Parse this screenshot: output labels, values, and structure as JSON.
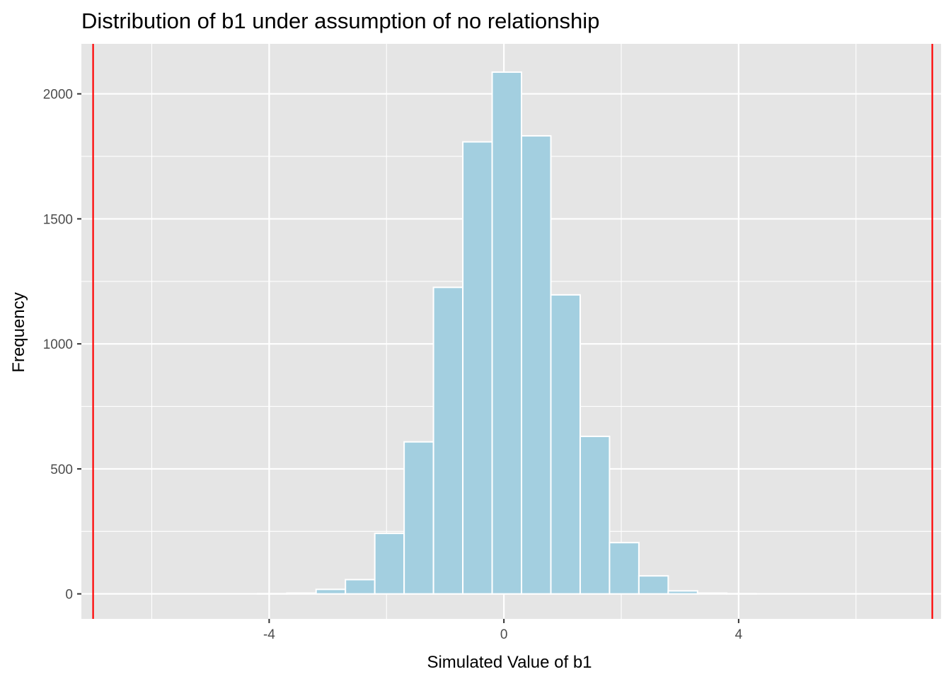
{
  "chart_data": {
    "type": "bar",
    "subtype": "histogram",
    "title": "Distribution of b1 under assumption of no relationship",
    "xlabel": "Simulated Value of b1",
    "ylabel": "Frequency",
    "xlim": [
      -7.2,
      7.45
    ],
    "ylim": [
      -100,
      2200
    ],
    "x_ticks": [
      -4,
      0,
      4
    ],
    "x_tick_labels": [
      "-4",
      "0",
      "4"
    ],
    "y_ticks": [
      0,
      500,
      1000,
      1500,
      2000
    ],
    "y_tick_labels": [
      "0",
      "500",
      "1000",
      "1500",
      "2000"
    ],
    "grid": true,
    "background": "#e5e5e5",
    "bar_fill": "#a3cfe0",
    "bar_outline": "#ffffff",
    "reference_line_color": "#ff0000",
    "reference_lines": [
      -7.0,
      7.3
    ],
    "bins": [
      {
        "x0": -5.7,
        "x1": -5.2,
        "count": 0
      },
      {
        "x0": -5.2,
        "x1": -4.7,
        "count": 0
      },
      {
        "x0": -4.7,
        "x1": -4.2,
        "count": 0
      },
      {
        "x0": -4.2,
        "x1": -3.7,
        "count": 1
      },
      {
        "x0": -3.7,
        "x1": -3.2,
        "count": 3
      },
      {
        "x0": -3.2,
        "x1": -2.7,
        "count": 18
      },
      {
        "x0": -2.7,
        "x1": -2.2,
        "count": 57
      },
      {
        "x0": -2.2,
        "x1": -1.7,
        "count": 242
      },
      {
        "x0": -1.7,
        "x1": -1.2,
        "count": 608
      },
      {
        "x0": -1.2,
        "x1": -0.7,
        "count": 1226
      },
      {
        "x0": -0.7,
        "x1": -0.2,
        "count": 1808
      },
      {
        "x0": -0.2,
        "x1": 0.3,
        "count": 2087
      },
      {
        "x0": 0.3,
        "x1": 0.8,
        "count": 1832
      },
      {
        "x0": 0.8,
        "x1": 1.3,
        "count": 1196
      },
      {
        "x0": 1.3,
        "x1": 1.8,
        "count": 630
      },
      {
        "x0": 1.8,
        "x1": 2.3,
        "count": 205
      },
      {
        "x0": 2.3,
        "x1": 2.8,
        "count": 72
      },
      {
        "x0": 2.8,
        "x1": 3.3,
        "count": 12
      },
      {
        "x0": 3.3,
        "x1": 3.8,
        "count": 3
      },
      {
        "x0": 3.8,
        "x1": 4.3,
        "count": 1
      },
      {
        "x0": 4.3,
        "x1": 4.8,
        "count": 0
      },
      {
        "x0": 4.8,
        "x1": 5.3,
        "count": 0
      },
      {
        "x0": 5.3,
        "x1": 5.8,
        "count": 0
      }
    ]
  }
}
